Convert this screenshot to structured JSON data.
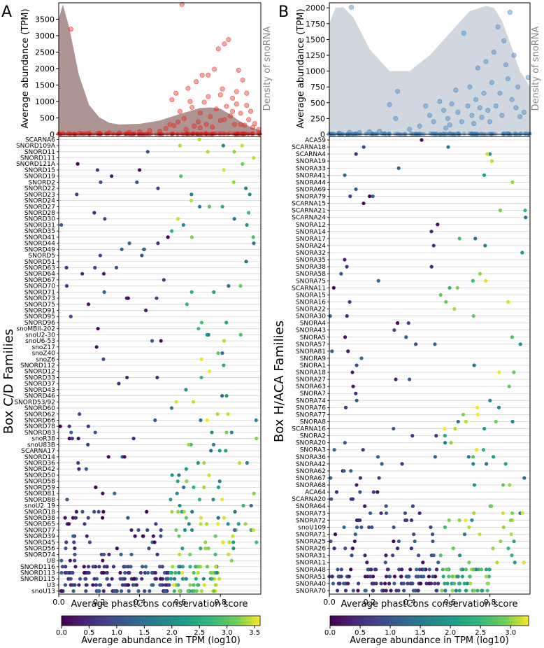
{
  "panels": [
    {
      "id": "A",
      "letter": "A",
      "density_label": "Density of snoRNA",
      "top_ylabel": "Average abundance (TPM)",
      "top_yticks": [
        0,
        500,
        1000,
        1500,
        2000,
        2500,
        3000,
        3500
      ],
      "top_ylim": [
        0,
        4000
      ],
      "bottom_ylabel": "Box C/D Families",
      "xlabel": "Average phastCons conservation score",
      "xticks": [
        "0.0",
        "0.2",
        "0.4",
        "0.6",
        "0.8"
      ],
      "families": [
        "SCARNA6",
        "SNORD109A",
        "SNORD11",
        "SNORD111",
        "SNORD121A",
        "SNORD15",
        "SNORD19",
        "SNORD2",
        "SNORD22",
        "SNORD23",
        "SNORD24",
        "SNORD27",
        "SNORD28",
        "SNORD30",
        "SNORD31",
        "SNORD35",
        "SNORD41",
        "SNORD44",
        "SNORD49",
        "SNORD5",
        "SNORD51",
        "SNORD63",
        "SNORD64",
        "SNORD67",
        "SNORD70",
        "SNORD71",
        "SNORD73",
        "SNORD75",
        "SNORD91",
        "SNORD95",
        "SNORD96",
        "snoMBII-202",
        "snoU2-30",
        "snoU6-53",
        "snoZ17",
        "snoZ40",
        "snoZ6",
        "SNORD112",
        "SNORD12",
        "SNORD33",
        "SNORD37",
        "SNORD43",
        "SNORD46",
        "SNORD53/92",
        "SNORD60",
        "SNORD62",
        "SNORD66",
        "SNORD78",
        "SNORD83",
        "snoR38",
        "snoU83B",
        "SCARNA17",
        "SNORD14",
        "SNORD36",
        "SNORD42",
        "SNORD50",
        "SNORD58",
        "SNORD59",
        "SNORD81",
        "SNORD88",
        "snoU2_19",
        "SNORD18",
        "SNORD38",
        "SNORD65",
        "SNORD77",
        "SNORD39",
        "SNORD45",
        "SNORD56",
        "SNORD74",
        "U8",
        "SNORD116",
        "SNORD113",
        "SNORD115",
        "U3",
        "snoU13"
      ],
      "colorbar": {
        "label": "Average abundance in TPM (log10)",
        "ticks": [
          "0.0",
          "0.5",
          "1.0",
          "1.5",
          "2.0",
          "2.5",
          "3.0",
          "3.5"
        ],
        "max": 3.6
      },
      "colors": {
        "dot": "#e8201a",
        "density": "#6b3d3a"
      }
    },
    {
      "id": "B",
      "letter": "B",
      "density_label": "Density of snoRNA",
      "top_ylabel": "Average abundance (TPM)",
      "top_yticks": [
        0,
        250,
        500,
        750,
        1000,
        1250,
        1500,
        1750,
        2000
      ],
      "top_ylim": [
        0,
        2080
      ],
      "bottom_ylabel": "Box H/ACA Families",
      "xlabel": "Average phastCons conservation score",
      "xticks": [
        "0.0",
        "0.2",
        "0.4",
        "0.6",
        "0.8"
      ],
      "families": [
        "ACA59",
        "SCARNA18",
        "SCARNA4",
        "SNORA19",
        "SNORA33",
        "SNORA41",
        "SNORA44",
        "SNORA69",
        "SNORA79",
        "SCARNA15",
        "SCARNA21",
        "SCARNA24",
        "SNORA12",
        "SNORA14",
        "SNORA17",
        "SNORA24",
        "SNORA32",
        "SNORA35",
        "SNORA38",
        "SNORA58",
        "SNORA75",
        "SCARNA11",
        "SNORA15",
        "SNORA16",
        "SNORA22",
        "SNORA30",
        "SNORA4",
        "SNORA43",
        "SNORA5",
        "SNORA57",
        "SNORA81",
        "SNORA9",
        "SNORA1",
        "SNORA18",
        "SNORA27",
        "SNORA63",
        "SNORA7",
        "SNORA74",
        "SNORA76",
        "SNORA77",
        "SNORA8",
        "SCARNA16",
        "SNORA2",
        "SNORA20",
        "SNORA3",
        "SNORA36",
        "SNORA42",
        "SNORA62",
        "SNORA67",
        "SNORA68",
        "ACA64",
        "SCARNA20",
        "SNORA64",
        "SNORA73",
        "SNORA72",
        "snoU109",
        "SNORA71",
        "SNORA25",
        "SNORA26",
        "SNORA31",
        "SNORA11",
        "SNORA48",
        "SNORA51",
        "SNORA40",
        "SNORA70"
      ],
      "colorbar": {
        "label": "Average abundance in TPM (log10)",
        "ticks": [
          "0.0",
          "0.5",
          "1.0",
          "1.5",
          "2.0",
          "2.5",
          "3.0"
        ],
        "max": 3.3
      },
      "colors": {
        "dot": "#3a7ebf",
        "density": "#9aa6b8"
      }
    }
  ],
  "chart_data": [
    {
      "type": "scatter",
      "title": "A",
      "xlabel": "Average phastCons conservation score",
      "ylabel": "Average abundance (TPM)",
      "xlim": [
        0,
        1
      ],
      "ylim": [
        0,
        4000
      ],
      "density_curve": {
        "x": [
          0,
          0.02,
          0.05,
          0.1,
          0.15,
          0.2,
          0.25,
          0.3,
          0.4,
          0.5,
          0.6,
          0.7,
          0.75,
          0.8,
          0.85,
          0.9,
          0.95,
          1.0
        ],
        "y": [
          3500,
          3950,
          3300,
          1800,
          900,
          520,
          350,
          300,
          320,
          420,
          620,
          800,
          820,
          780,
          600,
          380,
          220,
          120
        ]
      },
      "points": [
        [
          0.06,
          3200
        ],
        [
          0.61,
          3950
        ],
        [
          0.56,
          1050
        ],
        [
          0.58,
          1250
        ],
        [
          0.62,
          480
        ],
        [
          0.64,
          1400
        ],
        [
          0.66,
          820
        ],
        [
          0.67,
          250
        ],
        [
          0.68,
          1600
        ],
        [
          0.69,
          380
        ],
        [
          0.7,
          650
        ],
        [
          0.71,
          1800
        ],
        [
          0.72,
          980
        ],
        [
          0.73,
          300
        ],
        [
          0.74,
          1150
        ],
        [
          0.75,
          540
        ],
        [
          0.76,
          220
        ],
        [
          0.77,
          1980
        ],
        [
          0.78,
          770
        ],
        [
          0.79,
          2600
        ],
        [
          0.8,
          420
        ],
        [
          0.81,
          1380
        ],
        [
          0.82,
          2750
        ],
        [
          0.83,
          850
        ],
        [
          0.84,
          2880
        ],
        [
          0.85,
          560
        ],
        [
          0.86,
          1100
        ],
        [
          0.87,
          300
        ],
        [
          0.88,
          920
        ],
        [
          0.89,
          1950
        ],
        [
          0.9,
          640
        ],
        [
          0.91,
          1650
        ],
        [
          0.92,
          280
        ],
        [
          0.93,
          880
        ],
        [
          0.94,
          450
        ],
        [
          0.95,
          700
        ],
        [
          0.96,
          210
        ],
        [
          0.97,
          330
        ],
        [
          0.99,
          150
        ],
        [
          0.6,
          700
        ],
        [
          0.63,
          150
        ],
        [
          0.65,
          1000
        ],
        [
          0.74,
          1800
        ],
        [
          0.8,
          1200
        ],
        [
          0.82,
          450
        ],
        [
          0.86,
          700
        ],
        [
          0.88,
          1300
        ],
        [
          0.9,
          300
        ],
        [
          0.93,
          1250
        ],
        [
          0.7,
          200
        ],
        [
          0.57,
          260
        ],
        [
          0.59,
          380
        ],
        [
          0.53,
          180
        ],
        [
          0.55,
          300
        ],
        [
          0.45,
          120
        ],
        [
          0.5,
          100
        ],
        [
          0.4,
          80
        ],
        [
          0.35,
          60
        ],
        [
          0.3,
          40
        ],
        [
          0.25,
          50
        ],
        [
          0.2,
          40
        ],
        [
          0.15,
          30
        ],
        [
          0.1,
          30
        ],
        [
          0.05,
          20
        ],
        [
          0.02,
          10
        ]
      ],
      "families": [
        "SCARNA6",
        "SNORD109A",
        "SNORD11",
        "SNORD111",
        "SNORD121A",
        "SNORD15",
        "SNORD19",
        "SNORD2",
        "SNORD22",
        "SNORD23",
        "SNORD24",
        "SNORD27",
        "SNORD28",
        "SNORD30",
        "SNORD31",
        "SNORD35",
        "SNORD41",
        "SNORD44",
        "SNORD49",
        "SNORD5",
        "SNORD51",
        "SNORD63",
        "SNORD64",
        "SNORD67",
        "SNORD70",
        "SNORD71",
        "SNORD73",
        "SNORD75",
        "SNORD91",
        "SNORD95",
        "SNORD96",
        "snoMBII-202",
        "snoU2-30",
        "snoU6-53",
        "snoZ17",
        "snoZ40",
        "snoZ6",
        "SNORD112",
        "SNORD12",
        "SNORD33",
        "SNORD37",
        "SNORD43",
        "SNORD46",
        "SNORD53/92",
        "SNORD60",
        "SNORD62",
        "SNORD66",
        "SNORD78",
        "SNORD83",
        "snoR38",
        "snoU83B",
        "SCARNA17",
        "SNORD14",
        "SNORD36",
        "SNORD42",
        "SNORD50",
        "SNORD58",
        "SNORD59",
        "SNORD81",
        "SNORD88",
        "snoU2_19",
        "SNORD18",
        "SNORD38",
        "SNORD65",
        "SNORD77",
        "SNORD39",
        "SNORD45",
        "SNORD56",
        "SNORD74",
        "U8",
        "SNORD116",
        "SNORD113",
        "SNORD115",
        "U3",
        "snoU13"
      ]
    },
    {
      "type": "scatter",
      "title": "B",
      "xlabel": "Average phastCons conservation score",
      "ylabel": "Average abundance (TPM)",
      "xlim": [
        0,
        1
      ],
      "ylim": [
        0,
        2080
      ],
      "density_curve": {
        "x": [
          0,
          0.03,
          0.07,
          0.12,
          0.2,
          0.3,
          0.4,
          0.5,
          0.6,
          0.7,
          0.78,
          0.82,
          0.86,
          0.9,
          0.95,
          1.0
        ],
        "y": [
          1750,
          2000,
          2010,
          1850,
          1350,
          1000,
          1000,
          1250,
          1600,
          1950,
          2030,
          2000,
          1800,
          1450,
          1000,
          750
        ]
      },
      "points": [
        [
          0.11,
          2010
        ],
        [
          0.34,
          680
        ],
        [
          0.3,
          470
        ],
        [
          0.33,
          250
        ],
        [
          0.45,
          130
        ],
        [
          0.48,
          450
        ],
        [
          0.5,
          300
        ],
        [
          0.52,
          200
        ],
        [
          0.55,
          520
        ],
        [
          0.57,
          380
        ],
        [
          0.59,
          250
        ],
        [
          0.61,
          480
        ],
        [
          0.63,
          700
        ],
        [
          0.64,
          350
        ],
        [
          0.66,
          200
        ],
        [
          0.67,
          1600
        ],
        [
          0.69,
          450
        ],
        [
          0.7,
          750
        ],
        [
          0.71,
          300
        ],
        [
          0.72,
          170
        ],
        [
          0.73,
          550
        ],
        [
          0.74,
          1050
        ],
        [
          0.75,
          420
        ],
        [
          0.76,
          270
        ],
        [
          0.77,
          650
        ],
        [
          0.78,
          1150
        ],
        [
          0.79,
          380
        ],
        [
          0.8,
          200
        ],
        [
          0.81,
          820
        ],
        [
          0.82,
          1300
        ],
        [
          0.83,
          450
        ],
        [
          0.84,
          1700
        ],
        [
          0.85,
          650
        ],
        [
          0.86,
          300
        ],
        [
          0.87,
          1480
        ],
        [
          0.88,
          1100
        ],
        [
          0.89,
          880
        ],
        [
          0.9,
          1930
        ],
        [
          0.91,
          550
        ],
        [
          0.92,
          1250
        ],
        [
          0.93,
          420
        ],
        [
          0.94,
          750
        ],
        [
          0.95,
          280
        ],
        [
          0.97,
          350
        ],
        [
          0.99,
          900
        ],
        [
          0.6,
          150
        ],
        [
          0.58,
          100
        ],
        [
          0.4,
          80
        ],
        [
          0.25,
          50
        ],
        [
          0.2,
          40
        ],
        [
          0.15,
          30
        ],
        [
          0.1,
          30
        ],
        [
          0.05,
          20
        ]
      ],
      "families": [
        "ACA59",
        "SCARNA18",
        "SCARNA4",
        "SNORA19",
        "SNORA33",
        "SNORA41",
        "SNORA44",
        "SNORA69",
        "SNORA79",
        "SCARNA15",
        "SCARNA21",
        "SCARNA24",
        "SNORA12",
        "SNORA14",
        "SNORA17",
        "SNORA24",
        "SNORA32",
        "SNORA35",
        "SNORA38",
        "SNORA58",
        "SNORA75",
        "SCARNA11",
        "SNORA15",
        "SNORA16",
        "SNORA22",
        "SNORA30",
        "SNORA4",
        "SNORA43",
        "SNORA5",
        "SNORA57",
        "SNORA81",
        "SNORA9",
        "SNORA1",
        "SNORA18",
        "SNORA27",
        "SNORA63",
        "SNORA7",
        "SNORA74",
        "SNORA76",
        "SNORA77",
        "SNORA8",
        "SCARNA16",
        "SNORA2",
        "SNORA20",
        "SNORA3",
        "SNORA36",
        "SNORA42",
        "SNORA62",
        "SNORA67",
        "SNORA68",
        "ACA64",
        "SCARNA20",
        "SNORA64",
        "SNORA73",
        "SNORA72",
        "snoU109",
        "SNORA71",
        "SNORA25",
        "SNORA26",
        "SNORA31",
        "SNORA11",
        "SNORA48",
        "SNORA51",
        "SNORA40",
        "SNORA70"
      ]
    }
  ]
}
